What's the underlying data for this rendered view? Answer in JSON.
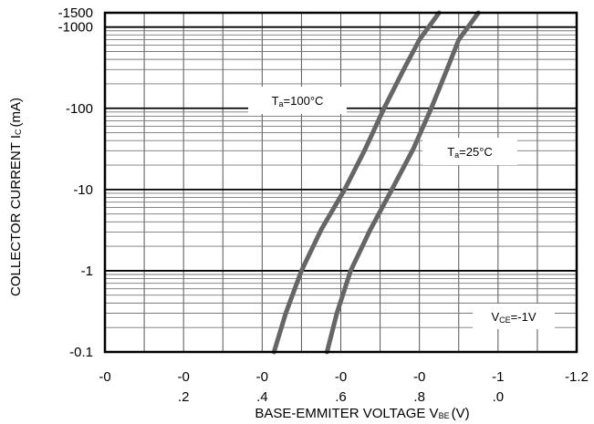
{
  "chart_data": {
    "type": "line",
    "xlabel": "BASE-EMMITER VOLTAGE V",
    "xlabel_sub": "BE",
    "xlabel_unit": "(V)",
    "ylabel": "COLLECTOR CURRENT I",
    "ylabel_sub": "C",
    "ylabel_unit": "(mA)",
    "y_scale": "log",
    "x_ticks": [
      {
        "value": 0,
        "line1": "-0",
        "line2": ""
      },
      {
        "value": 0.2,
        "line1": "-0",
        "line2": ".2"
      },
      {
        "value": 0.4,
        "line1": "-0",
        "line2": ".4"
      },
      {
        "value": 0.6,
        "line1": "-0",
        "line2": ".6"
      },
      {
        "value": 0.8,
        "line1": "-0",
        "line2": ".8"
      },
      {
        "value": 1.0,
        "line1": "-1",
        "line2": ".0"
      },
      {
        "value": 1.2,
        "line1": "-1.2",
        "line2": ""
      }
    ],
    "y_ticks": [
      {
        "value": 0.1,
        "label": "-0.1"
      },
      {
        "value": 1,
        "label": "-1"
      },
      {
        "value": 10,
        "label": "-10"
      },
      {
        "value": 100,
        "label": "-100"
      },
      {
        "value": 1000,
        "label": "-1000"
      },
      {
        "value": 1500,
        "label": "-1500"
      }
    ],
    "xlim": [
      0,
      1.2
    ],
    "ylim": [
      0.1,
      1500
    ],
    "grid": true,
    "series": [
      {
        "name": "Ta=100°C",
        "label_main": "T",
        "label_sub": "a",
        "label_rest": "=100°C",
        "x": [
          0.43,
          0.46,
          0.5,
          0.55,
          0.61,
          0.66,
          0.71,
          0.76,
          0.8,
          0.85
        ],
        "y": [
          0.1,
          0.3,
          1,
          3.2,
          10,
          30,
          100,
          300,
          700,
          1500
        ]
      },
      {
        "name": "Ta=25°C",
        "label_main": "T",
        "label_sub": "a",
        "label_rest": "=25°C",
        "x": [
          0.565,
          0.59,
          0.625,
          0.675,
          0.73,
          0.785,
          0.83,
          0.87,
          0.9,
          0.95
        ],
        "y": [
          0.1,
          0.3,
          1,
          3.2,
          10,
          32,
          100,
          300,
          700,
          1500
        ]
      }
    ],
    "condition": {
      "main": "V",
      "sub": "CE",
      "rest": "=-1V"
    }
  }
}
